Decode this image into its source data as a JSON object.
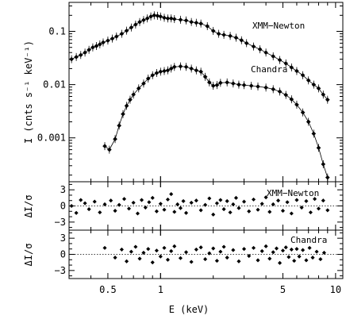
{
  "chart_data": {
    "type": "scatter",
    "xlabel": "E (keV)",
    "x_scale": "log",
    "xlim": [
      0.3,
      11
    ],
    "x_ticks": [
      0.5,
      1,
      5,
      10
    ],
    "x_tick_labels": [
      "0.5",
      "1",
      "5",
      "10"
    ],
    "panels": [
      {
        "id": "spectrum",
        "ylabel": "I (cnts s⁻¹ keV⁻¹)",
        "y_scale": "log",
        "ylim": [
          0.00015,
          0.35
        ],
        "y_ticks": [
          0.001,
          0.01,
          0.1
        ],
        "y_tick_labels": [
          "0.001",
          "0.01",
          "0.1"
        ],
        "series": [
          {
            "name": "XMM−Newton",
            "points": [
              [
                0.31,
                0.03
              ],
              [
                0.33,
                0.033
              ],
              [
                0.35,
                0.036
              ],
              [
                0.37,
                0.04
              ],
              [
                0.39,
                0.045
              ],
              [
                0.41,
                0.05
              ],
              [
                0.43,
                0.053
              ],
              [
                0.45,
                0.057
              ],
              [
                0.47,
                0.062
              ],
              [
                0.5,
                0.067
              ],
              [
                0.53,
                0.073
              ],
              [
                0.56,
                0.08
              ],
              [
                0.6,
                0.09
              ],
              [
                0.64,
                0.103
              ],
              [
                0.68,
                0.118
              ],
              [
                0.72,
                0.134
              ],
              [
                0.76,
                0.15
              ],
              [
                0.8,
                0.163
              ],
              [
                0.84,
                0.175
              ],
              [
                0.88,
                0.19
              ],
              [
                0.92,
                0.2
              ],
              [
                0.96,
                0.196
              ],
              [
                1.0,
                0.19
              ],
              [
                1.05,
                0.18
              ],
              [
                1.1,
                0.175
              ],
              [
                1.15,
                0.175
              ],
              [
                1.2,
                0.17
              ],
              [
                1.3,
                0.165
              ],
              [
                1.4,
                0.16
              ],
              [
                1.5,
                0.15
              ],
              [
                1.6,
                0.145
              ],
              [
                1.7,
                0.14
              ],
              [
                1.85,
                0.125
              ],
              [
                2.0,
                0.102
              ],
              [
                2.15,
                0.09
              ],
              [
                2.3,
                0.086
              ],
              [
                2.5,
                0.082
              ],
              [
                2.7,
                0.076
              ],
              [
                2.9,
                0.068
              ],
              [
                3.1,
                0.06
              ],
              [
                3.4,
                0.052
              ],
              [
                3.7,
                0.046
              ],
              [
                4.0,
                0.04
              ],
              [
                4.4,
                0.034
              ],
              [
                4.8,
                0.029
              ],
              [
                5.2,
                0.025
              ],
              [
                5.6,
                0.021
              ],
              [
                6.0,
                0.018
              ],
              [
                6.5,
                0.015
              ],
              [
                7.0,
                0.012
              ],
              [
                7.5,
                0.01
              ],
              [
                8.0,
                0.0085
              ],
              [
                8.5,
                0.0065
              ],
              [
                9.0,
                0.0052
              ]
            ]
          },
          {
            "name": "Chandra",
            "points": [
              [
                0.48,
                0.0007
              ],
              [
                0.51,
                0.0006
              ],
              [
                0.55,
                0.00095
              ],
              [
                0.58,
                0.0017
              ],
              [
                0.61,
                0.0028
              ],
              [
                0.64,
                0.004
              ],
              [
                0.67,
                0.0052
              ],
              [
                0.7,
                0.0065
              ],
              [
                0.75,
                0.0085
              ],
              [
                0.8,
                0.0105
              ],
              [
                0.85,
                0.013
              ],
              [
                0.9,
                0.015
              ],
              [
                0.95,
                0.0165
              ],
              [
                1.0,
                0.0175
              ],
              [
                1.05,
                0.018
              ],
              [
                1.1,
                0.0185
              ],
              [
                1.15,
                0.02
              ],
              [
                1.2,
                0.0215
              ],
              [
                1.3,
                0.022
              ],
              [
                1.4,
                0.0215
              ],
              [
                1.5,
                0.02
              ],
              [
                1.6,
                0.0185
              ],
              [
                1.7,
                0.0175
              ],
              [
                1.8,
                0.014
              ],
              [
                1.9,
                0.011
              ],
              [
                2.0,
                0.0095
              ],
              [
                2.1,
                0.0098
              ],
              [
                2.2,
                0.0108
              ],
              [
                2.4,
                0.011
              ],
              [
                2.6,
                0.0105
              ],
              [
                2.8,
                0.01
              ],
              [
                3.0,
                0.0098
              ],
              [
                3.3,
                0.0095
              ],
              [
                3.6,
                0.0092
              ],
              [
                4.0,
                0.0088
              ],
              [
                4.4,
                0.0082
              ],
              [
                4.8,
                0.0074
              ],
              [
                5.2,
                0.0064
              ],
              [
                5.6,
                0.0053
              ],
              [
                6.0,
                0.0042
              ],
              [
                6.5,
                0.003
              ],
              [
                7.0,
                0.002
              ],
              [
                7.5,
                0.0012
              ],
              [
                8.0,
                0.00065
              ],
              [
                8.5,
                0.00032
              ],
              [
                9.0,
                0.00018
              ]
            ]
          }
        ],
        "annotations": [
          "XMM−Newton",
          "Chandra"
        ]
      },
      {
        "id": "residuals-xmm",
        "ylabel": "ΔI/σ",
        "ylim": [
          -4.5,
          4.5
        ],
        "y_ticks": [
          -3,
          0,
          3
        ],
        "y_tick_labels": [
          "−3",
          "0",
          "3"
        ],
        "series": [
          {
            "name": "XMM−Newton",
            "points": [
              [
                0.31,
                0.0
              ],
              [
                0.33,
                -1.3
              ],
              [
                0.35,
                1.1
              ],
              [
                0.37,
                0.5
              ],
              [
                0.39,
                -0.6
              ],
              [
                0.42,
                0.8
              ],
              [
                0.45,
                -1.2
              ],
              [
                0.48,
                0.3
              ],
              [
                0.52,
                1.0
              ],
              [
                0.55,
                -0.9
              ],
              [
                0.58,
                0.2
              ],
              [
                0.62,
                1.3
              ],
              [
                0.66,
                -0.5
              ],
              [
                0.7,
                0.6
              ],
              [
                0.74,
                -1.4
              ],
              [
                0.78,
                1.1
              ],
              [
                0.82,
                -0.3
              ],
              [
                0.86,
                0.7
              ],
              [
                0.9,
                1.5
              ],
              [
                0.95,
                -1.0
              ],
              [
                1.0,
                0.4
              ],
              [
                1.05,
                -0.7
              ],
              [
                1.1,
                1.2
              ],
              [
                1.15,
                2.2
              ],
              [
                1.2,
                -1.1
              ],
              [
                1.25,
                0.3
              ],
              [
                1.3,
                -0.4
              ],
              [
                1.35,
                0.9
              ],
              [
                1.4,
                -1.3
              ],
              [
                1.5,
                0.6
              ],
              [
                1.6,
                1.0
              ],
              [
                1.7,
                -0.8
              ],
              [
                1.8,
                0.2
              ],
              [
                1.9,
                1.4
              ],
              [
                2.0,
                -1.6
              ],
              [
                2.1,
                0.5
              ],
              [
                2.2,
                1.1
              ],
              [
                2.3,
                -0.6
              ],
              [
                2.4,
                0.9
              ],
              [
                2.5,
                -1.2
              ],
              [
                2.6,
                0.3
              ],
              [
                2.7,
                1.5
              ],
              [
                2.8,
                -0.4
              ],
              [
                3.0,
                0.8
              ],
              [
                3.2,
                -1.0
              ],
              [
                3.4,
                1.2
              ],
              [
                3.6,
                -0.7
              ],
              [
                3.8,
                0.4
              ],
              [
                4.0,
                1.6
              ],
              [
                4.2,
                -1.1
              ],
              [
                4.4,
                0.3
              ],
              [
                4.7,
                1.0
              ],
              [
                5.0,
                -0.9
              ],
              [
                5.3,
                0.7
              ],
              [
                5.6,
                -1.4
              ],
              [
                6.0,
                1.1
              ],
              [
                6.4,
                -0.3
              ],
              [
                6.8,
                0.9
              ],
              [
                7.2,
                -1.2
              ],
              [
                7.6,
                1.3
              ],
              [
                8.0,
                -0.5
              ],
              [
                8.5,
                1.0
              ],
              [
                9.0,
                -0.8
              ]
            ]
          }
        ],
        "reference_line": 0,
        "annotations": [
          "XMM−Newton"
        ]
      },
      {
        "id": "residuals-chandra",
        "ylabel": "ΔI/σ",
        "ylim": [
          -4.5,
          4.5
        ],
        "y_ticks": [
          -3,
          0,
          3
        ],
        "y_tick_labels": [
          "−3",
          "0",
          "3"
        ],
        "series": [
          {
            "name": "Chandra",
            "points": [
              [
                0.48,
                1.2
              ],
              [
                0.55,
                -0.6
              ],
              [
                0.6,
                0.9
              ],
              [
                0.64,
                -1.3
              ],
              [
                0.68,
                0.5
              ],
              [
                0.72,
                1.4
              ],
              [
                0.76,
                -0.8
              ],
              [
                0.8,
                0.3
              ],
              [
                0.85,
                1.0
              ],
              [
                0.9,
                -1.5
              ],
              [
                0.95,
                0.7
              ],
              [
                1.0,
                -0.4
              ],
              [
                1.05,
                1.2
              ],
              [
                1.1,
                -1.0
              ],
              [
                1.15,
                0.6
              ],
              [
                1.2,
                1.5
              ],
              [
                1.3,
                -0.7
              ],
              [
                1.4,
                0.4
              ],
              [
                1.5,
                -1.4
              ],
              [
                1.6,
                0.9
              ],
              [
                1.7,
                1.3
              ],
              [
                1.8,
                -0.9
              ],
              [
                1.9,
                0.2
              ],
              [
                2.0,
                1.1
              ],
              [
                2.1,
                -1.2
              ],
              [
                2.2,
                0.5
              ],
              [
                2.3,
                1.4
              ],
              [
                2.4,
                -0.6
              ],
              [
                2.6,
                0.8
              ],
              [
                2.8,
                -1.3
              ],
              [
                3.0,
                1.0
              ],
              [
                3.2,
                -0.3
              ],
              [
                3.4,
                1.2
              ],
              [
                3.6,
                -1.1
              ],
              [
                3.8,
                0.6
              ],
              [
                4.0,
                1.5
              ],
              [
                4.2,
                -0.8
              ],
              [
                4.4,
                0.4
              ],
              [
                4.6,
                1.1
              ],
              [
                4.8,
                -1.6
              ],
              [
                5.0,
                0.7
              ],
              [
                5.2,
                1.3
              ],
              [
                5.4,
                -0.5
              ],
              [
                5.6,
                0.9
              ],
              [
                5.8,
                -1.2
              ],
              [
                6.0,
                1.0
              ],
              [
                6.2,
                -0.4
              ],
              [
                6.5,
                0.8
              ],
              [
                6.8,
                -1.1
              ],
              [
                7.1,
                1.2
              ],
              [
                7.4,
                -0.6
              ],
              [
                7.8,
                0.5
              ],
              [
                8.2,
                -0.9
              ],
              [
                8.6,
                0.3
              ]
            ]
          }
        ],
        "reference_line": 0,
        "annotations": [
          "Chandra"
        ]
      }
    ]
  }
}
